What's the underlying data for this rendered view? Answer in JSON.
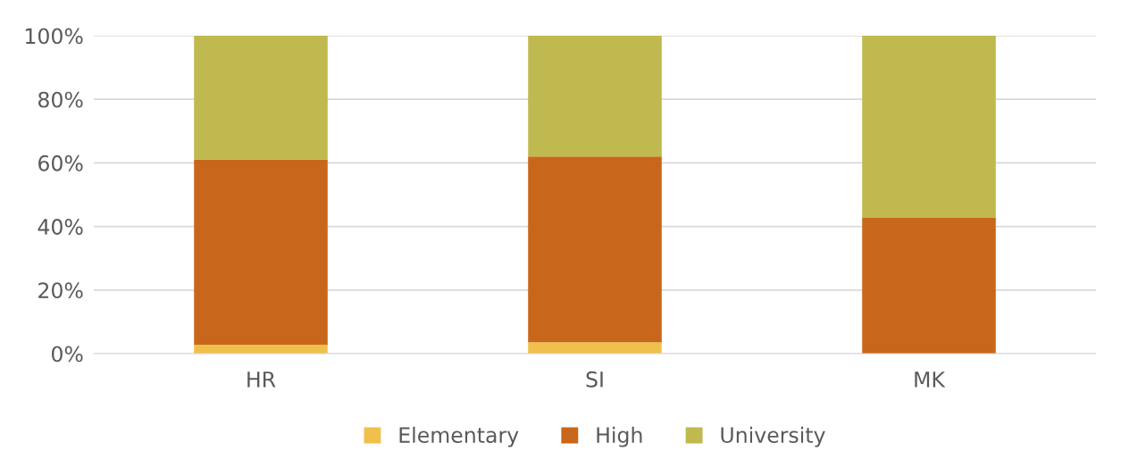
{
  "chart_data": {
    "type": "bar",
    "stacked": true,
    "categories": [
      "HR",
      "SI",
      "MK"
    ],
    "series": [
      {
        "name": "Elementary",
        "color": "#f0c04c",
        "values": [
          2.8,
          3.6,
          0
        ]
      },
      {
        "name": "High",
        "color": "#c8671b",
        "values": [
          58.3,
          58.4,
          42.7
        ]
      },
      {
        "name": "University",
        "color": "#c0b94f",
        "values": [
          38.9,
          38.0,
          57.3
        ]
      }
    ],
    "ylim": [
      0,
      100
    ],
    "yticks": [
      {
        "value": 0,
        "label": "0%"
      },
      {
        "value": 20,
        "label": "20%"
      },
      {
        "value": 40,
        "label": "40%"
      },
      {
        "value": 60,
        "label": "60%"
      },
      {
        "value": 80,
        "label": "80%"
      },
      {
        "value": 100,
        "label": "100%"
      }
    ],
    "grid": "y",
    "legend": "bottom"
  }
}
